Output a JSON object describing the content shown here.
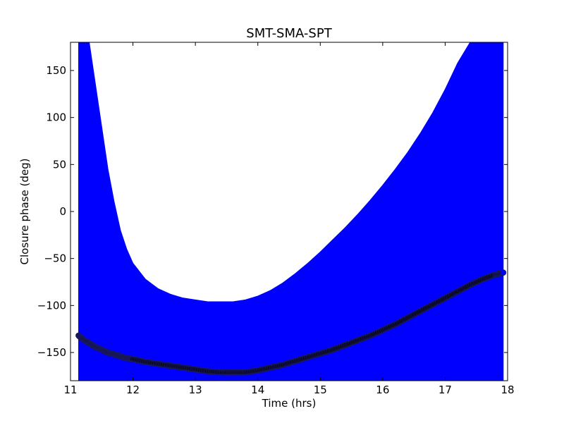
{
  "chart_data": {
    "type": "scatter",
    "title": "SMT-SMA-SPT",
    "xlabel": "Time (hrs)",
    "ylabel": "Closure phase (deg)",
    "xlim": [
      11,
      18
    ],
    "ylim": [
      -180,
      180
    ],
    "xticks": [
      11,
      12,
      13,
      14,
      15,
      16,
      17,
      18
    ],
    "yticks": [
      -150,
      -100,
      -50,
      0,
      50,
      100,
      150
    ],
    "xtick_labels": [
      "11",
      "12",
      "13",
      "14",
      "15",
      "16",
      "17",
      "18"
    ],
    "ytick_labels": [
      "−150",
      "−100",
      "−50",
      "0",
      "50",
      "100",
      "150"
    ],
    "grid": false,
    "legend": "none",
    "colors": {
      "errorbar": "#0000ff",
      "marker": "#000000",
      "marker_edge": "#0000ff"
    },
    "series": [
      {
        "x": [
          11.13,
          11.2,
          11.3,
          11.4,
          11.5,
          11.6,
          11.7,
          11.8,
          11.9,
          12.0,
          12.2,
          12.4,
          12.6,
          12.8,
          13.0,
          13.2,
          13.4,
          13.6,
          13.8,
          14.0,
          14.2,
          14.4,
          14.6,
          14.8,
          15.0,
          15.2,
          15.4,
          15.6,
          15.8,
          16.0,
          16.2,
          16.4,
          16.6,
          16.8,
          17.0,
          17.2,
          17.4,
          17.6,
          17.8,
          17.93
        ],
        "y": [
          -132,
          -136,
          -140,
          -144,
          -147,
          -150,
          -152,
          -154,
          -156,
          -157,
          -160,
          -162,
          -164,
          -166,
          -168,
          -170,
          -171,
          -171,
          -171,
          -169,
          -166,
          -163,
          -159,
          -155,
          -151,
          -147,
          -142,
          -137,
          -132,
          -126,
          -120,
          -113,
          -106,
          -99,
          -92,
          -85,
          -78,
          -72,
          -67,
          -65
        ],
        "yerr_upper": [
          180,
          180,
          180,
          135,
          90,
          45,
          10,
          -20,
          -40,
          -55,
          -72,
          -82,
          -88,
          -92,
          -94,
          -96,
          -96,
          -96,
          -94,
          -90,
          -84,
          -76,
          -66,
          -55,
          -43,
          -30,
          -17,
          -3,
          12,
          28,
          45,
          63,
          83,
          105,
          130,
          158,
          180,
          180,
          180,
          180
        ],
        "yerr_lower": [
          -180,
          -180,
          -180,
          -180,
          -180,
          -180,
          -180,
          -180,
          -180,
          -180,
          -180,
          -180,
          -180,
          -180,
          -180,
          -180,
          -180,
          -180,
          -180,
          -180,
          -180,
          -180,
          -180,
          -180,
          -180,
          -180,
          -180,
          -180,
          -180,
          -180,
          -180,
          -180,
          -180,
          -180,
          -180,
          -180,
          -180,
          -180,
          -180,
          -180
        ]
      }
    ]
  }
}
